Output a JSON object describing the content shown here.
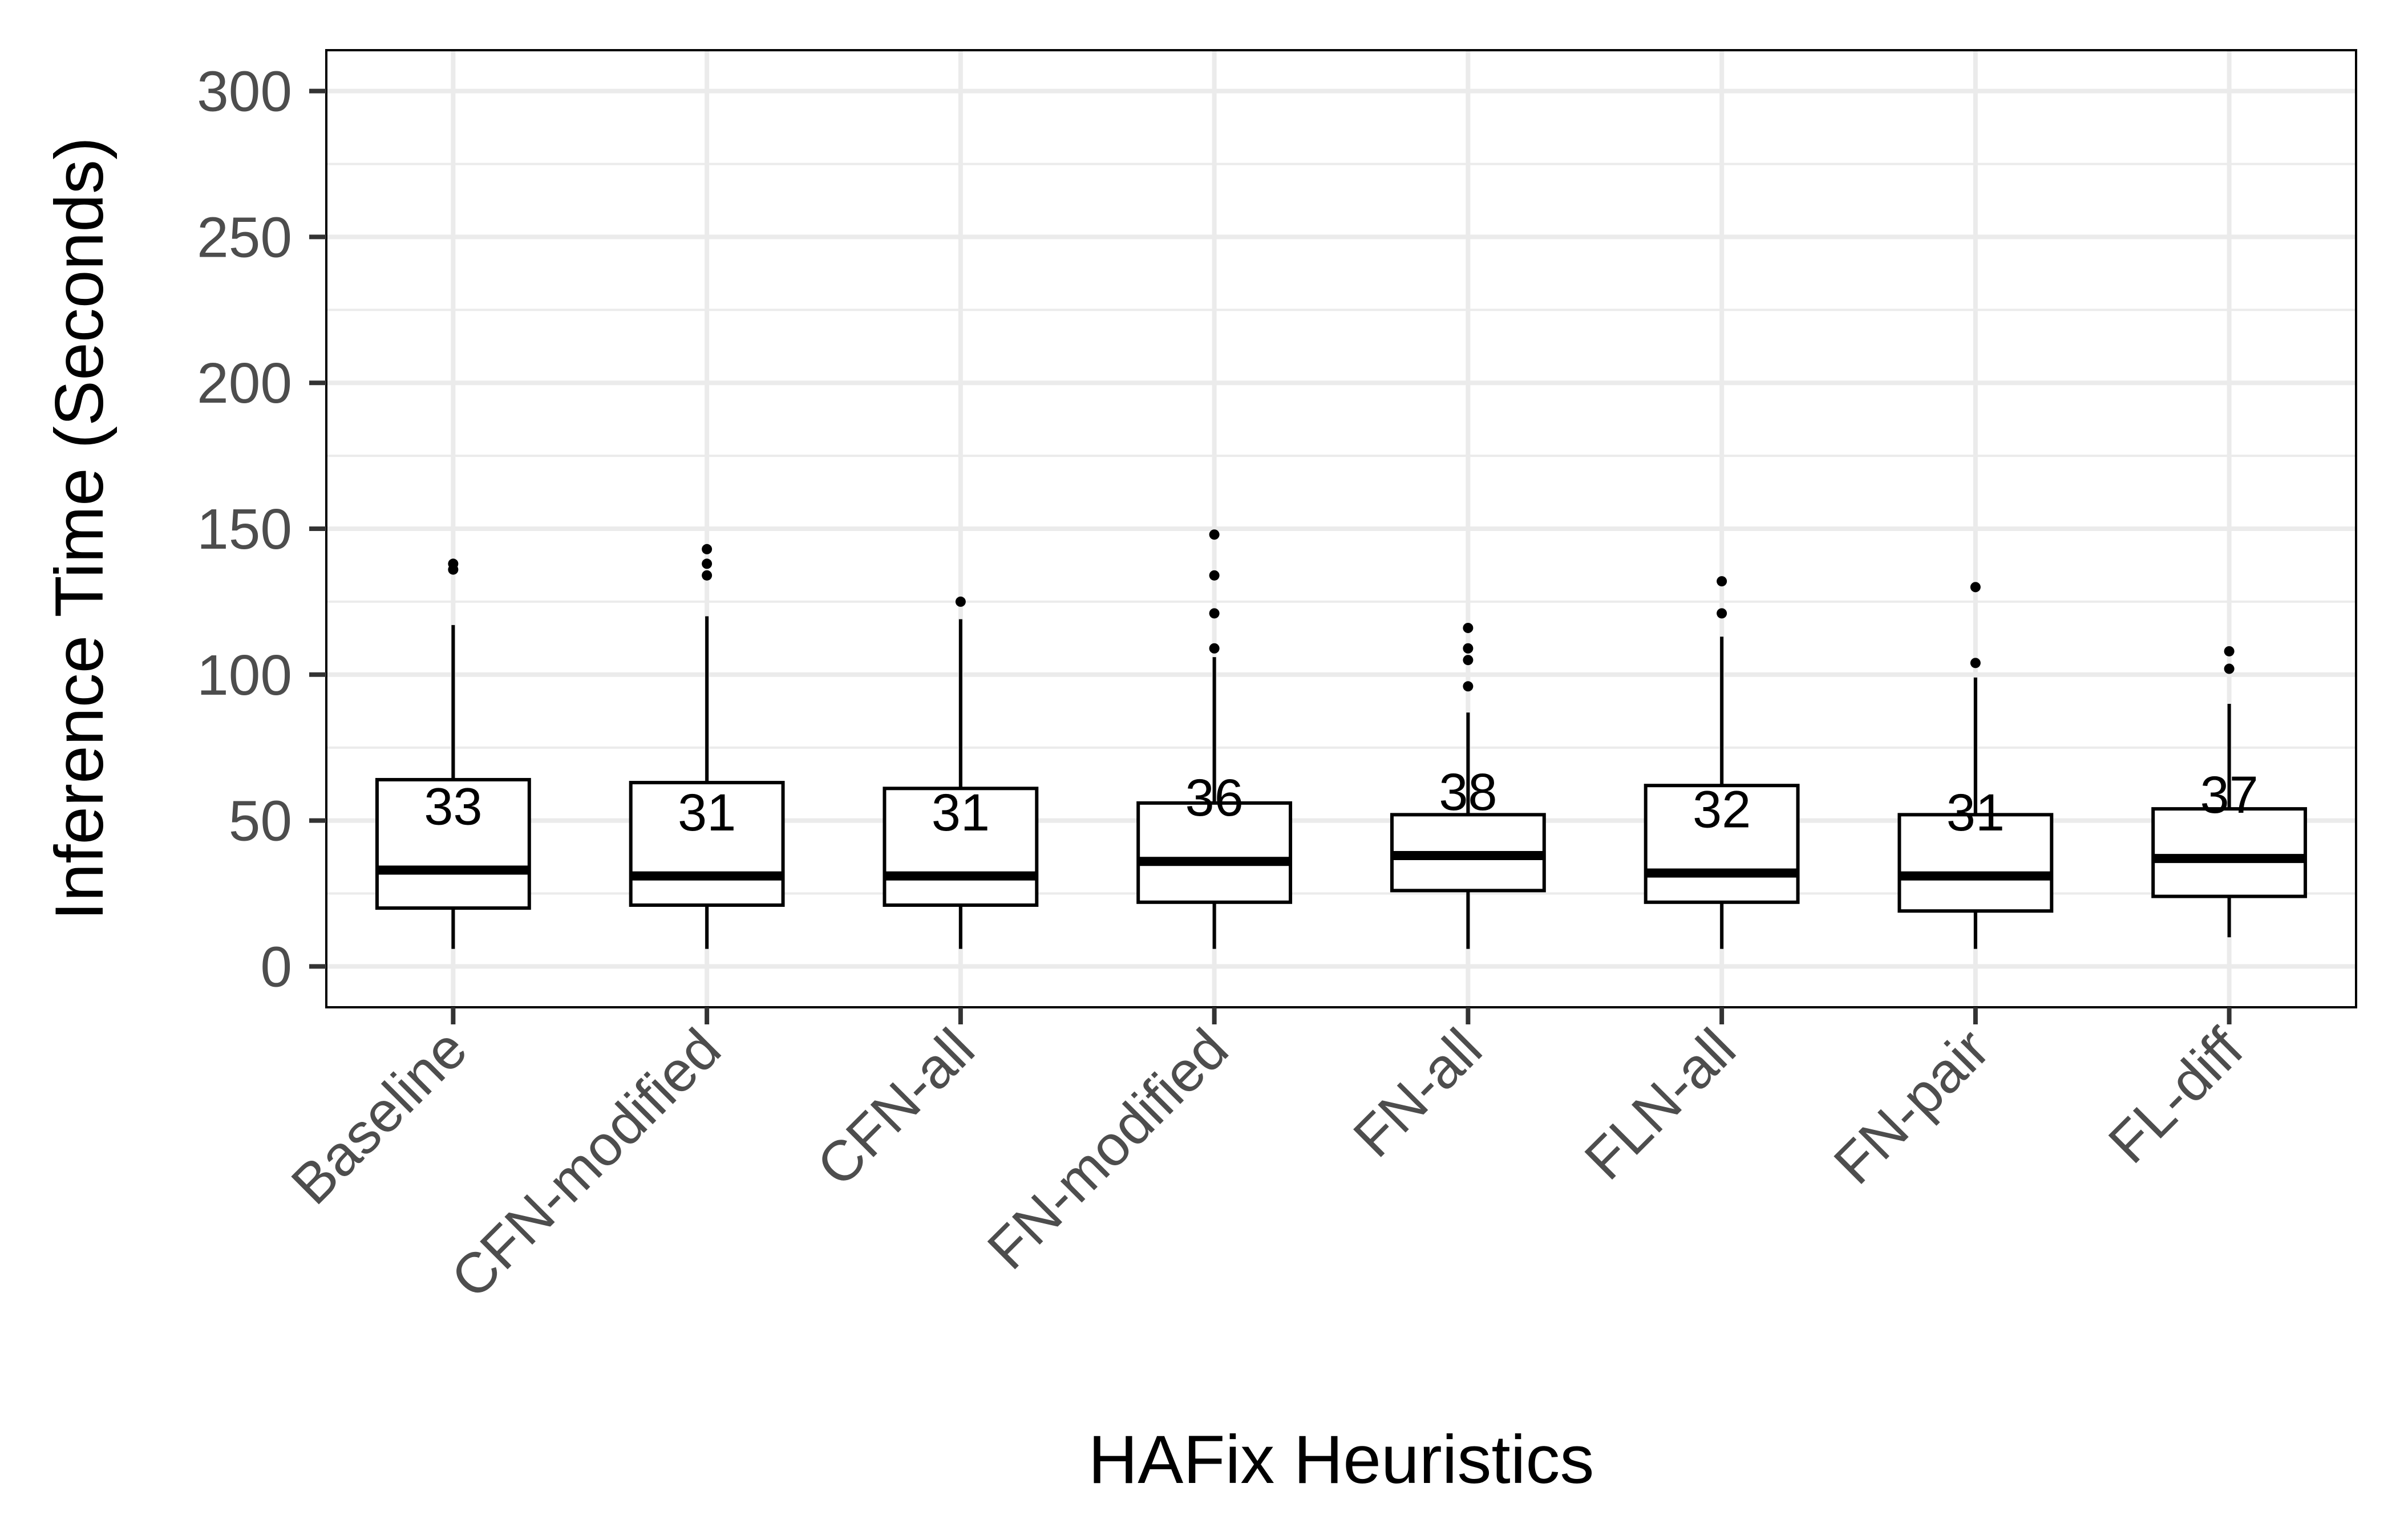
{
  "chart_data": {
    "type": "box",
    "title": "",
    "xlabel": "HAFix Heuristics",
    "ylabel": "Inference Time (Seconds)",
    "ylim": [
      -14,
      314
    ],
    "y_ticks": [
      0,
      50,
      100,
      150,
      200,
      250,
      300
    ],
    "grid": true,
    "legend": "none",
    "categories": [
      "Baseline",
      "CFN-modified",
      "CFN-all",
      "FN-modified",
      "FN-all",
      "FLN-all",
      "FN-pair",
      "FL-diff"
    ],
    "boxes": [
      {
        "name": "Baseline",
        "whisker_low": 6,
        "q1": 20,
        "median": 33,
        "q3": 64,
        "whisker_high": 117,
        "outliers": [
          136,
          138
        ],
        "median_label": "33"
      },
      {
        "name": "CFN-modified",
        "whisker_low": 6,
        "q1": 21,
        "median": 31,
        "q3": 63,
        "whisker_high": 120,
        "outliers": [
          134,
          138,
          143
        ],
        "median_label": "31"
      },
      {
        "name": "CFN-all",
        "whisker_low": 6,
        "q1": 21,
        "median": 31,
        "q3": 61,
        "whisker_high": 119,
        "outliers": [
          125
        ],
        "median_label": "31"
      },
      {
        "name": "FN-modified",
        "whisker_low": 6,
        "q1": 22,
        "median": 36,
        "q3": 56,
        "whisker_high": 106,
        "outliers": [
          109,
          121,
          134,
          148
        ],
        "median_label": "36"
      },
      {
        "name": "FN-all",
        "whisker_low": 6,
        "q1": 26,
        "median": 38,
        "q3": 52,
        "whisker_high": 87,
        "outliers": [
          96,
          105,
          109,
          116
        ],
        "median_label": "38"
      },
      {
        "name": "FLN-all",
        "whisker_low": 6,
        "q1": 22,
        "median": 32,
        "q3": 62,
        "whisker_high": 113,
        "outliers": [
          121,
          132
        ],
        "median_label": "32"
      },
      {
        "name": "FN-pair",
        "whisker_low": 6,
        "q1": 19,
        "median": 31,
        "q3": 52,
        "whisker_high": 99,
        "outliers": [
          104,
          130
        ],
        "median_label": "31"
      },
      {
        "name": "FL-diff",
        "whisker_low": 10,
        "q1": 24,
        "median": 37,
        "q3": 54,
        "whisker_high": 90,
        "outliers": [
          102,
          108
        ],
        "median_label": "37"
      }
    ],
    "colors": {
      "box_fill": "#ffffff",
      "box_stroke": "#000000",
      "grid": "#ebebeb",
      "tick_text": "#4d4d4d",
      "panel_border": "#000000"
    }
  }
}
